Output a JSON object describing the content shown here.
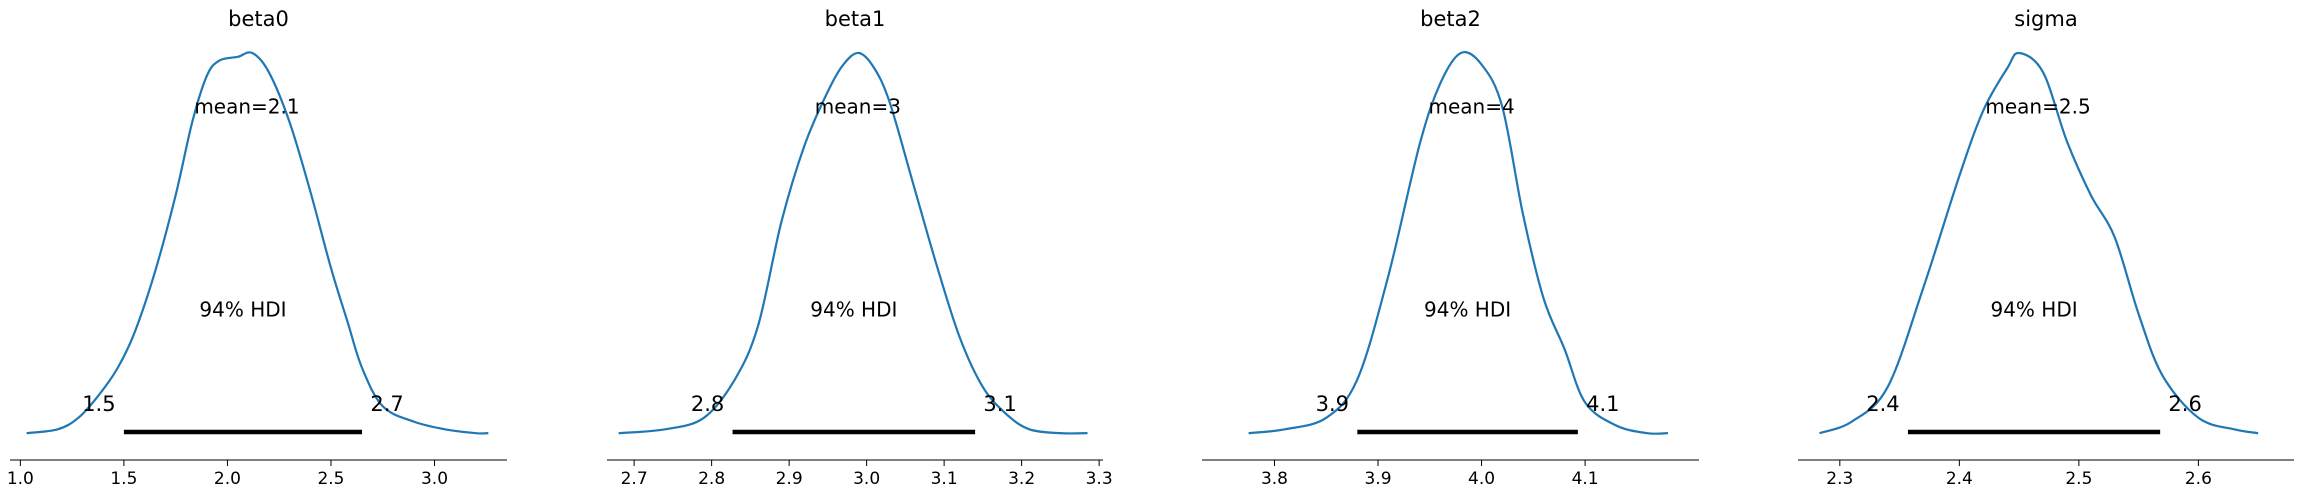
{
  "colors": {
    "kde": "#1f77b4",
    "hdi_bar": "#000000",
    "axis": "#000000",
    "background": "#ffffff"
  },
  "chart_data": [
    {
      "type": "line",
      "title": "beta0",
      "xlim": [
        0.95,
        3.35
      ],
      "x_ticks": [
        1.0,
        1.5,
        2.0,
        2.5,
        3.0
      ],
      "x_tick_labels": [
        "1.0",
        "1.5",
        "2.0",
        "2.5",
        "3.0"
      ],
      "mean_label": "mean=2.1",
      "hdi_label": "94% HDI",
      "hdi": [
        1.5,
        2.65
      ],
      "hdi_labels": [
        "1.5",
        "2.7"
      ],
      "density_x": [
        1.03,
        1.18,
        1.28,
        1.38,
        1.47,
        1.55,
        1.65,
        1.75,
        1.83,
        1.9,
        1.96,
        2.05,
        2.12,
        2.2,
        2.3,
        2.4,
        2.5,
        2.58,
        2.65,
        2.75,
        2.9,
        3.05,
        3.2,
        3.26
      ],
      "density_y": [
        0.01,
        0.02,
        0.05,
        0.11,
        0.18,
        0.27,
        0.43,
        0.63,
        0.82,
        0.94,
        0.98,
        0.99,
        1.0,
        0.95,
        0.82,
        0.64,
        0.44,
        0.3,
        0.18,
        0.08,
        0.04,
        0.02,
        0.01,
        0.01
      ]
    },
    {
      "type": "line",
      "title": "beta1",
      "xlim": [
        2.665,
        3.305
      ],
      "x_ticks": [
        2.7,
        2.8,
        2.9,
        3.0,
        3.1,
        3.2,
        3.3
      ],
      "x_tick_labels": [
        "2.7",
        "2.8",
        "2.9",
        "3.0",
        "3.1",
        "3.2",
        "3.3"
      ],
      "mean_label": "mean=3",
      "hdi_label": "94% HDI",
      "hdi": [
        2.827,
        3.14
      ],
      "hdi_labels": [
        "2.8",
        "3.1"
      ],
      "density_x": [
        2.68,
        2.74,
        2.79,
        2.83,
        2.86,
        2.89,
        2.92,
        2.95,
        2.97,
        2.99,
        3.01,
        3.03,
        3.06,
        3.09,
        3.12,
        3.15,
        3.18,
        3.21,
        3.25,
        3.285
      ],
      "density_y": [
        0.01,
        0.02,
        0.05,
        0.15,
        0.29,
        0.56,
        0.76,
        0.9,
        0.97,
        1.0,
        0.96,
        0.87,
        0.66,
        0.45,
        0.26,
        0.13,
        0.06,
        0.02,
        0.01,
        0.01
      ]
    },
    {
      "type": "line",
      "title": "beta2",
      "xlim": [
        3.73,
        4.21
      ],
      "x_ticks": [
        3.8,
        3.9,
        4.0,
        4.1
      ],
      "x_tick_labels": [
        "3.8",
        "3.9",
        "4.0",
        "4.1"
      ],
      "mean_label": "mean=4",
      "hdi_label": "94% HDI",
      "hdi": [
        3.88,
        4.093
      ],
      "hdi_labels": [
        "3.9",
        "4.1"
      ],
      "density_x": [
        3.775,
        3.81,
        3.85,
        3.88,
        3.91,
        3.94,
        3.96,
        3.98,
        4.0,
        4.02,
        4.04,
        4.06,
        4.08,
        4.1,
        4.13,
        4.16,
        4.18
      ],
      "density_y": [
        0.01,
        0.02,
        0.05,
        0.15,
        0.42,
        0.76,
        0.92,
        1.0,
        0.97,
        0.86,
        0.58,
        0.36,
        0.23,
        0.09,
        0.03,
        0.01,
        0.01
      ]
    },
    {
      "type": "line",
      "title": "sigma",
      "xlim": [
        2.265,
        2.68
      ],
      "x_ticks": [
        2.3,
        2.4,
        2.5,
        2.6
      ],
      "x_tick_labels": [
        "2.3",
        "2.4",
        "2.5",
        "2.6"
      ],
      "mean_label": "mean=2.5",
      "hdi_label": "94% HDI",
      "hdi": [
        2.357,
        2.568
      ],
      "hdi_labels": [
        "2.4",
        "2.6"
      ],
      "density_x": [
        2.283,
        2.31,
        2.34,
        2.37,
        2.4,
        2.42,
        2.44,
        2.45,
        2.47,
        2.49,
        2.51,
        2.53,
        2.55,
        2.57,
        2.6,
        2.63,
        2.65
      ],
      "density_y": [
        0.01,
        0.04,
        0.13,
        0.39,
        0.68,
        0.85,
        0.96,
        1.0,
        0.95,
        0.77,
        0.63,
        0.52,
        0.32,
        0.16,
        0.05,
        0.02,
        0.01
      ]
    }
  ]
}
